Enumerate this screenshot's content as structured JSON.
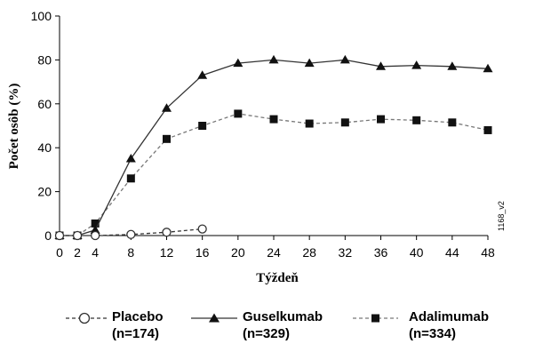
{
  "chart_data": {
    "type": "line",
    "xlabel": "Týždeň",
    "ylabel": "Počet osôb (%)",
    "x_ticks": [
      0,
      2,
      4,
      8,
      12,
      16,
      20,
      24,
      28,
      32,
      36,
      40,
      44,
      48
    ],
    "y_ticks": [
      0,
      20,
      40,
      60,
      80,
      100
    ],
    "xlim": [
      0,
      48
    ],
    "ylim": [
      0,
      100
    ],
    "grid": false,
    "legend_position": "bottom",
    "series": [
      {
        "name": "Placebo",
        "legend_n": "(n=174)",
        "marker": "open-circle",
        "line_style": "dashed",
        "color": "#333333",
        "x": [
          0,
          2,
          4,
          8,
          12,
          16
        ],
        "y": [
          0,
          0,
          0,
          0.5,
          1.5,
          3
        ]
      },
      {
        "name": "Guselkumab",
        "legend_n": "(n=329)",
        "marker": "filled-triangle",
        "line_style": "solid",
        "color": "#333333",
        "x": [
          0,
          2,
          4,
          8,
          12,
          16,
          20,
          24,
          28,
          32,
          36,
          40,
          44,
          48
        ],
        "y": [
          0,
          0,
          2.5,
          35,
          58,
          73,
          78.5,
          80,
          78.5,
          80,
          77,
          77.5,
          77,
          76
        ]
      },
      {
        "name": "Adalimumab",
        "legend_n": "(n=334)",
        "marker": "filled-square",
        "line_style": "dashed",
        "color": "#777777",
        "x": [
          0,
          2,
          4,
          8,
          12,
          16,
          20,
          24,
          28,
          32,
          36,
          40,
          44,
          48
        ],
        "y": [
          0,
          0,
          5.5,
          26,
          44,
          50,
          55.5,
          53,
          51,
          51.5,
          53,
          52.5,
          51.5,
          48
        ]
      }
    ],
    "annotations": [
      "1168_v2"
    ]
  }
}
